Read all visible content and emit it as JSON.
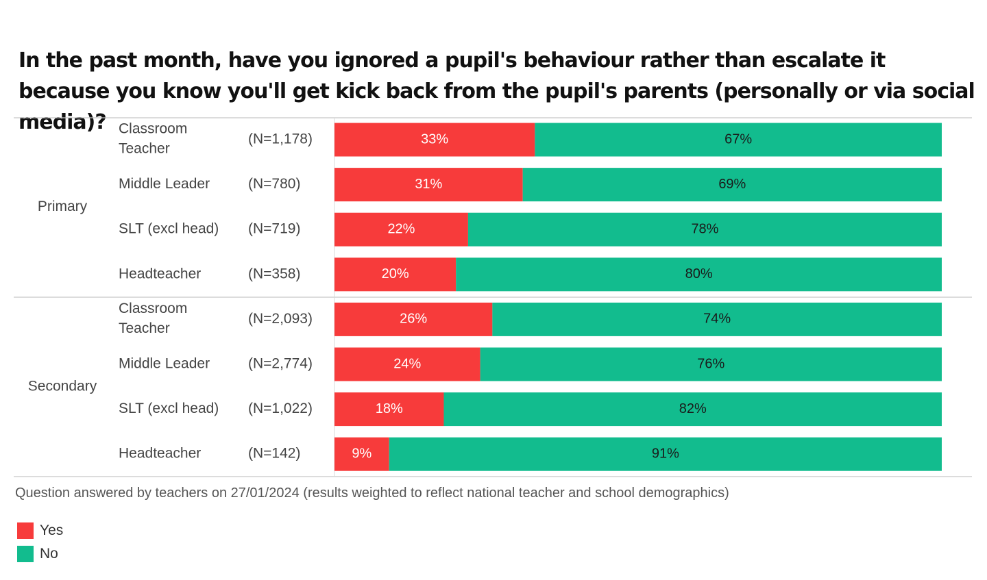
{
  "colors": {
    "yes": "#f73b3b",
    "no": "#12bc8e",
    "rule": "#c8c8c8"
  },
  "chart_data": {
    "type": "bar",
    "orientation": "horizontal",
    "stacked": true,
    "normalized": true,
    "title": "In the past month, have you ignored a pupil's behaviour rather than escalate it because you know you'll get kick back from the pupil's parents (personally or via social media)?",
    "xlim": [
      0,
      100
    ],
    "legend_position": "bottom-left",
    "groups": [
      {
        "name": "Primary",
        "rows": [
          {
            "label": "Classroom Teacher",
            "n": "(N=1,178)",
            "yes": 33,
            "no": 67,
            "yes_label": "33%",
            "no_label": "67%"
          },
          {
            "label": "Middle Leader",
            "n": "(N=780)",
            "yes": 31,
            "no": 69,
            "yes_label": "31%",
            "no_label": "69%"
          },
          {
            "label": "SLT (excl head)",
            "n": "(N=719)",
            "yes": 22,
            "no": 78,
            "yes_label": "22%",
            "no_label": "78%"
          },
          {
            "label": "Headteacher",
            "n": "(N=358)",
            "yes": 20,
            "no": 80,
            "yes_label": "20%",
            "no_label": "80%"
          }
        ]
      },
      {
        "name": "Secondary",
        "rows": [
          {
            "label": "Classroom Teacher",
            "n": "(N=2,093)",
            "yes": 26,
            "no": 74,
            "yes_label": "26%",
            "no_label": "74%"
          },
          {
            "label": "Middle Leader",
            "n": "(N=2,774)",
            "yes": 24,
            "no": 76,
            "yes_label": "24%",
            "no_label": "76%"
          },
          {
            "label": "SLT (excl head)",
            "n": "(N=1,022)",
            "yes": 18,
            "no": 82,
            "yes_label": "18%",
            "no_label": "82%"
          },
          {
            "label": "Headteacher",
            "n": "(N=142)",
            "yes": 9,
            "no": 91,
            "yes_label": "9%",
            "no_label": "91%"
          }
        ]
      }
    ],
    "series": [
      {
        "name": "Yes"
      },
      {
        "name": "No"
      }
    ]
  },
  "footnote": "Question answered by  teachers on 27/01/2024 (results weighted to reflect national teacher and school demographics)",
  "legend": {
    "yes_label": "Yes",
    "no_label": "No"
  }
}
